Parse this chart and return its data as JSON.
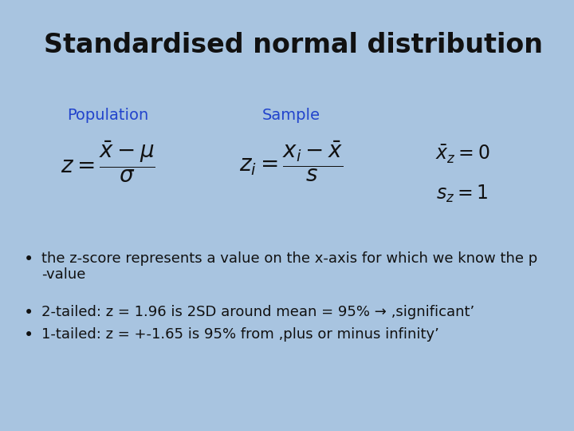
{
  "title": "Standardised normal distribution",
  "title_fontsize": 24,
  "title_color": "#111111",
  "background_color": "#a8c4e0",
  "label_population": "Population",
  "label_sample": "Sample",
  "label_color": "#2244cc",
  "label_fontsize": 14,
  "formula_color": "#111111",
  "bullet1_line1": "the z-score represents a value on the x-axis for which we know the p",
  "bullet1_line2": "-value",
  "bullet2": "2-tailed: z = 1.96 is 2SD around mean = 95% → ‚significant’",
  "bullet3": "1-tailed: z = +-1.65 is 95% from ‚plus or minus infinity’",
  "bullet_fontsize": 13,
  "bullet_color": "#111111"
}
